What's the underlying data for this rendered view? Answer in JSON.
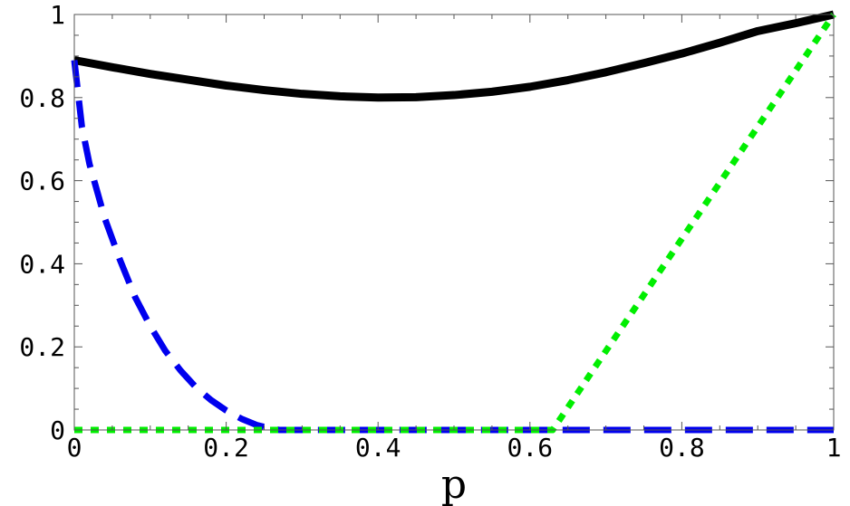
{
  "chart_data": {
    "type": "line",
    "xlabel": "p",
    "ylabel": "",
    "xlim": [
      0,
      1
    ],
    "ylim": [
      0,
      1
    ],
    "xticks": [
      0,
      0.2,
      0.4,
      0.6,
      0.8,
      1
    ],
    "yticks": [
      0,
      0.2,
      0.4,
      0.6,
      0.8,
      1
    ],
    "xtick_labels": [
      "0",
      "0.2",
      "0.4",
      "0.6",
      "0.8",
      "1"
    ],
    "ytick_labels": [
      "0",
      "0.2",
      "0.4",
      "0.6",
      "0.8",
      "1"
    ],
    "grid": false,
    "legend": "none",
    "series": [
      {
        "style": "solid",
        "color": "#000000",
        "x": [
          0,
          0.05,
          0.1,
          0.15,
          0.2,
          0.25,
          0.3,
          0.35,
          0.4,
          0.45,
          0.5,
          0.55,
          0.6,
          0.65,
          0.7,
          0.75,
          0.8,
          0.85,
          0.9,
          0.95,
          1
        ],
        "y": [
          0.89,
          0.873,
          0.857,
          0.843,
          0.829,
          0.818,
          0.809,
          0.803,
          0.8,
          0.801,
          0.806,
          0.814,
          0.826,
          0.842,
          0.861,
          0.883,
          0.906,
          0.932,
          0.96,
          0.979,
          1
        ]
      },
      {
        "style": "dashed",
        "color": "#0000ee",
        "x": [
          0,
          0.01,
          0.02,
          0.04,
          0.06,
          0.08,
          0.1,
          0.12,
          0.14,
          0.16,
          0.18,
          0.2,
          0.22,
          0.24,
          0.26,
          0.27,
          0.3,
          0.4,
          0.5,
          0.6,
          0.7,
          0.8,
          0.9,
          1
        ],
        "y": [
          0.89,
          0.73,
          0.64,
          0.51,
          0.41,
          0.32,
          0.25,
          0.19,
          0.143,
          0.103,
          0.072,
          0.047,
          0.027,
          0.012,
          0.003,
          0,
          0,
          0,
          0,
          0,
          0,
          0,
          0,
          0
        ]
      },
      {
        "style": "dotted",
        "color": "#00ee00",
        "x": [
          0,
          0.1,
          0.2,
          0.3,
          0.4,
          0.5,
          0.6,
          0.63,
          0.7,
          0.8,
          0.9,
          1
        ],
        "y": [
          0,
          0,
          0,
          0,
          0,
          0,
          0,
          0,
          0.19,
          0.46,
          0.73,
          1
        ]
      }
    ]
  }
}
